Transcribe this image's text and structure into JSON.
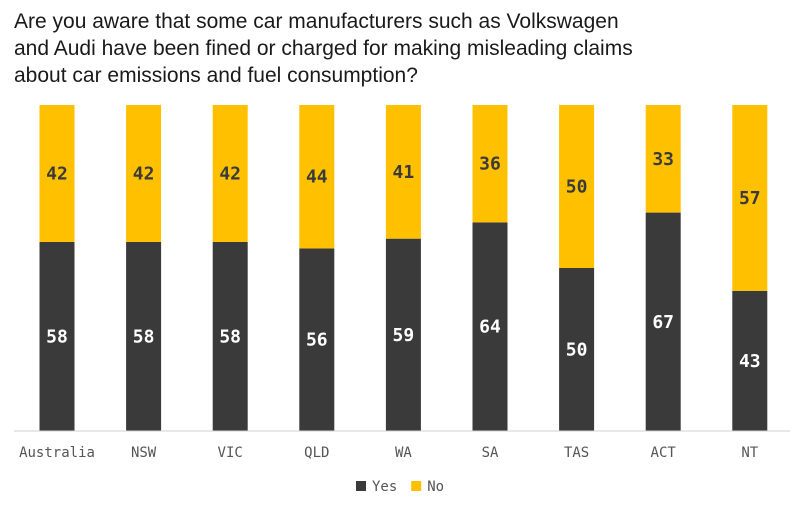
{
  "chart_data": {
    "type": "bar",
    "stacked": true,
    "title": "Are you aware that some car manufacturers such as Volkswagen and Audi have been fined or charged for making misleading claims about car emissions and fuel consumption?",
    "categories": [
      "Australia",
      "NSW",
      "VIC",
      "QLD",
      "WA",
      "SA",
      "TAS",
      "ACT",
      "NT"
    ],
    "series": [
      {
        "name": "Yes",
        "color": "#3a3a3a",
        "label_color": "#ffffff",
        "values": [
          58,
          58,
          58,
          56,
          59,
          64,
          50,
          67,
          43
        ]
      },
      {
        "name": "No",
        "color": "#ffc000",
        "label_color": "#3a3a3a",
        "values": [
          42,
          42,
          42,
          44,
          41,
          36,
          50,
          33,
          57
        ]
      }
    ],
    "ylim": [
      0,
      100
    ],
    "grid": false,
    "legend_position": "bottom-center"
  }
}
